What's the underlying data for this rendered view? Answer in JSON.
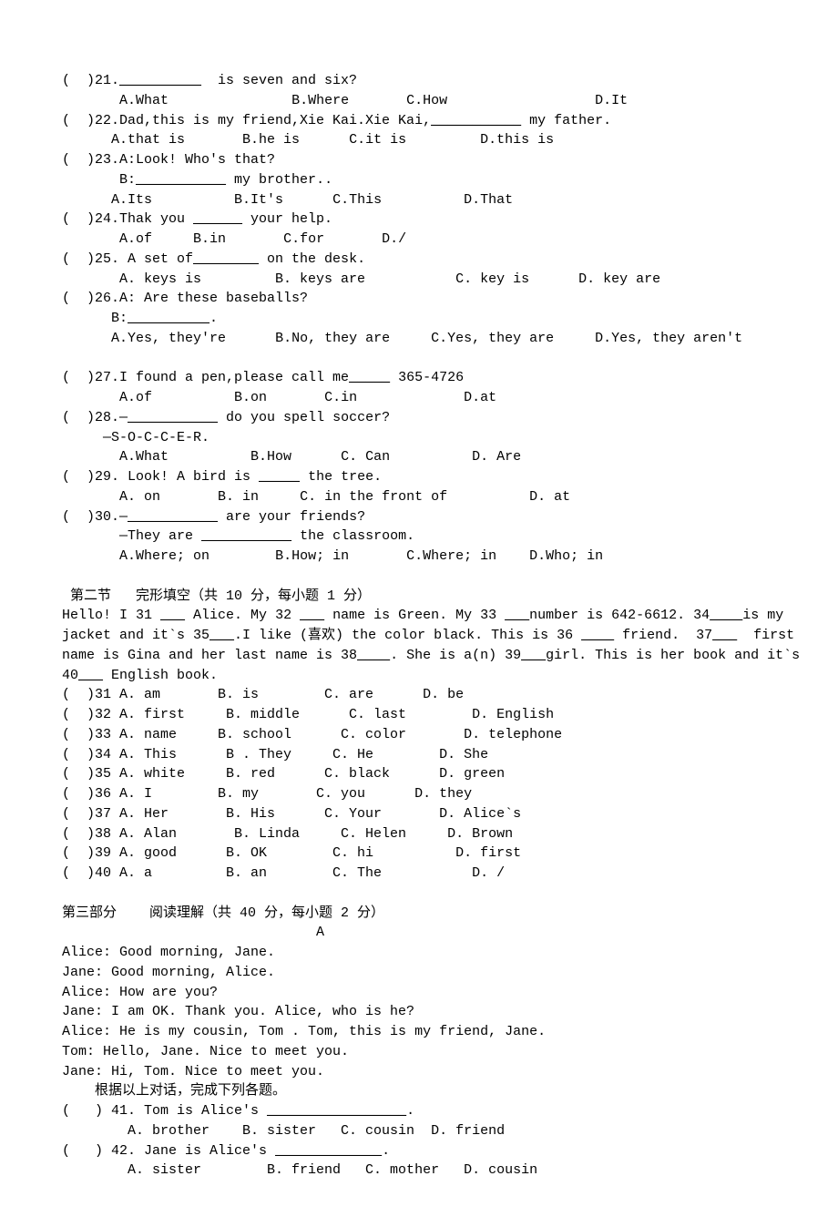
{
  "q21": {
    "stem1": "(  )21.",
    "blank": "__________",
    "stem2": "  is seven and six?",
    "a": "A.What",
    "b": "B.Where",
    "c": "C.How",
    "d": "D.It"
  },
  "q22": {
    "stem1": "(  )22.Dad,this is my friend,Xie Kai.Xie Kai,",
    "blank": "___________",
    "stem2": " my father.",
    "a": "A.that is",
    "b": "B.he is",
    "c": "C.it is",
    "d": "D.this is"
  },
  "q23": {
    "stem": "(  )23.A:Look! Who's that?",
    "stem2a": "       B:",
    "blank": "___________",
    "stem2b": " my brother..",
    "a": "A.Its",
    "b": "B.It's",
    "c": "C.This",
    "d": "D.That"
  },
  "q24": {
    "stem1": "(  )24.Thak you ",
    "blank": "______",
    "stem2": " your help.",
    "a": "A.of",
    "b": "B.in",
    "c": "C.for",
    "d": "D./"
  },
  "q25": {
    "stem1": "(  )25. A set of",
    "blank": "________",
    "stem2": " on the desk.",
    "a": "A. keys is",
    "b": "B. keys are",
    "c": "C. key is",
    "d": "D. key are"
  },
  "q26": {
    "stem": "(  )26.A: Are these baseballs?",
    "stem2a": "      B:",
    "blank": "__________",
    "stem2b": ".",
    "a": "A.Yes, they're",
    "b": "B.No, they are",
    "c": "C.Yes, they are",
    "d": "D.Yes, they aren't"
  },
  "q27": {
    "stem1": "(  )27.I found a pen,please call me",
    "blank": "_____",
    "stem2": " 365-4726",
    "a": "A.of",
    "b": "B.on",
    "c": "C.in",
    "d": "D.at"
  },
  "q28": {
    "stem1": "(  )28.—",
    "blank": "___________",
    "stem2": " do you spell soccer?",
    "line2": "     —S-O-C-C-E-R.",
    "a": "A.What",
    "b": "B.How",
    "c": "C. Can",
    "d": "D. Are"
  },
  "q29": {
    "stem1": "(  )29. Look! A bird is ",
    "blank": "_____",
    "stem2": " the tree.",
    "a": "A. on",
    "b": "B. in",
    "c": "C. in the front of",
    "d": "D. at"
  },
  "q30": {
    "stem1": "(  )30.—",
    "blank": "___________",
    "stem2": " are your friends?",
    "line2a": "       —They are ",
    "blank2": "___________",
    "line2b": " the classroom.",
    "a": "A.Where; on",
    "b": "B.How; in",
    "c": "C.Where; in",
    "d": "D.Who; in"
  },
  "cloze": {
    "title": " 第二节   完形填空（共 10 分，每小题 1 分）",
    "p1a": "Hello! I 31 ",
    "b1": "___",
    "p1b": " Alice. My 32 ",
    "b2": "___",
    "p1c": " name is Green. My 33 ",
    "b3": "___",
    "p1d": "number is 642-6612. 34",
    "b4": "____",
    "p1e": "is my",
    "p2a": "jacket and it`s 35",
    "b5": "___",
    "p2b": ".I like (喜欢) the color black. This is 36 ",
    "b6": "____",
    "p2c": " friend.  37",
    "b7": "___",
    "p2d": "  first",
    "p3a": "name is Gina and her last name is 38",
    "b8": "____",
    "p3b": ". She is a(n) 39",
    "b9": "___",
    "p3c": "girl. This is her book and it`s",
    "p4a": "40",
    "b10": "___",
    "p4b": " English book.",
    "o31": "(  )31 A. am       B. is        C. are      D. be",
    "o32": "(  )32 A. first     B. middle      C. last        D. English",
    "o33": "(  )33 A. name     B. school      C. color       D. telephone",
    "o34": "(  )34 A. This      B . They     C. He        D. She",
    "o35": "(  )35 A. white     B. red      C. black      D. green",
    "o36": "(  )36 A. I        B. my       C. you      D. they",
    "o37": "(  )37 A. Her       B. His      C. Your       D. Alice`s",
    "o38": "(  )38 A. Alan       B. Linda     C. Helen     D. Brown",
    "o39": "(  )39 A. good      B. OK        C. hi          D. first",
    "o40": "(  )40 A. a         B. an        C. The           D. /"
  },
  "reading": {
    "title": "第三部分    阅读理解（共 40 分，每小题 2 分）",
    "label": "                               A",
    "l1": "Alice: Good morning, Jane.",
    "l2": "Jane: Good morning, Alice.",
    "l3": "Alice: How are you?",
    "l4": "Jane: I am OK. Thank you. Alice, who is he?",
    "l5": "Alice: He is my cousin, Tom . Tom, this is my friend, Jane.",
    "l6": "Tom: Hello, Jane. Nice to meet you.",
    "l7": "Jane: Hi, Tom. Nice to meet you.",
    "instr": "    根据以上对话，完成下列各题。",
    "q41a": "(   ) 41. Tom is Alice's ",
    "q41blank": "_________________",
    "q41b": ".",
    "q41opts": "        A. brother    B. sister   C. cousin  D. friend",
    "q42a": "(   ) 42. Jane is Alice's ",
    "q42blank": "_____________",
    "q42b": ".",
    "q42opts": "        A. sister        B. friend   C. mother   D. cousin"
  }
}
